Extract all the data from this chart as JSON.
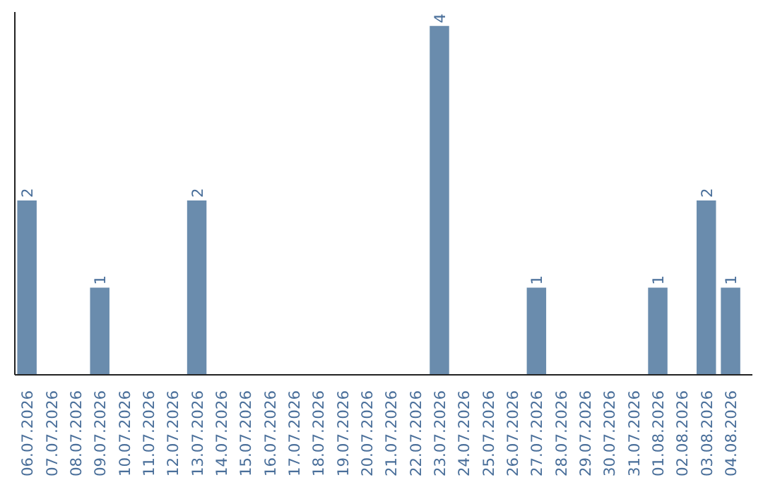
{
  "chart_data": {
    "type": "bar",
    "categories": [
      "06.07.2026",
      "07.07.2026",
      "08.07.2026",
      "09.07.2026",
      "10.07.2026",
      "11.07.2026",
      "12.07.2026",
      "13.07.2026",
      "14.07.2026",
      "15.07.2026",
      "16.07.2026",
      "17.07.2026",
      "18.07.2026",
      "19.07.2026",
      "20.07.2026",
      "21.07.2026",
      "22.07.2026",
      "23.07.2026",
      "24.07.2026",
      "25.07.2026",
      "26.07.2026",
      "27.07.2026",
      "28.07.2026",
      "29.07.2026",
      "30.07.2026",
      "31.07.2026",
      "01.08.2026",
      "02.08.2026",
      "03.08.2026",
      "04.08.2026"
    ],
    "values": [
      2,
      0,
      0,
      1,
      0,
      0,
      0,
      2,
      0,
      0,
      0,
      0,
      0,
      0,
      0,
      0,
      0,
      4,
      0,
      0,
      0,
      1,
      0,
      0,
      0,
      0,
      1,
      0,
      2,
      1
    ],
    "value_labels": [
      "2",
      null,
      null,
      "1",
      null,
      null,
      null,
      "2",
      null,
      null,
      null,
      null,
      null,
      null,
      null,
      null,
      null,
      "4",
      null,
      null,
      null,
      "1",
      null,
      null,
      null,
      null,
      "1",
      null,
      "2",
      "1"
    ],
    "color": "#6a8cad",
    "ylim": [
      0,
      4.16
    ]
  }
}
